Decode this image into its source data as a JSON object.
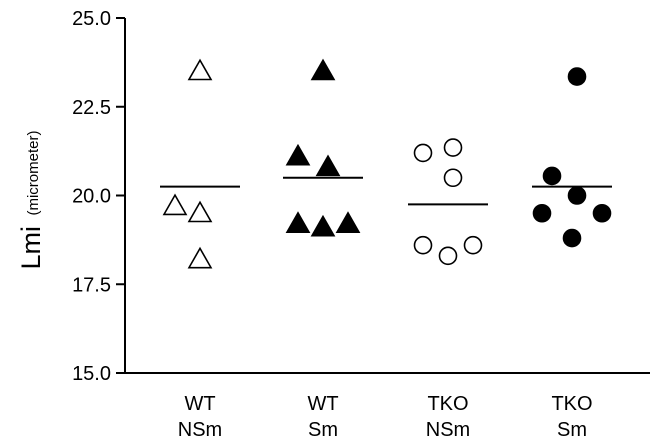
{
  "chart_data": {
    "type": "scatter",
    "ylabel": {
      "main": "Lmi",
      "unit": "(micrometer)"
    },
    "ylim": [
      15.0,
      25.0
    ],
    "y_ticks": [
      "15.0",
      "17.5",
      "20.0",
      "22.5",
      "25.0"
    ],
    "grid": false,
    "legend": "none",
    "categories": [
      {
        "line1": "WT",
        "line2": "NSm"
      },
      {
        "line1": "WT",
        "line2": "Sm"
      },
      {
        "line1": "TKO",
        "line2": "NSm"
      },
      {
        "line1": "TKO",
        "line2": "Sm"
      }
    ],
    "groups": [
      {
        "marker": "triangle-open",
        "mean": 20.25,
        "points": [
          {
            "x_offset": 0.0,
            "y": 23.5
          },
          {
            "x_offset": -0.25,
            "y": 19.7
          },
          {
            "x_offset": 0.0,
            "y": 19.5
          },
          {
            "x_offset": 0.0,
            "y": 18.2
          }
        ]
      },
      {
        "marker": "triangle-filled",
        "mean": 20.5,
        "points": [
          {
            "x_offset": 0.0,
            "y": 23.5
          },
          {
            "x_offset": -0.25,
            "y": 21.1
          },
          {
            "x_offset": 0.05,
            "y": 20.8
          },
          {
            "x_offset": -0.25,
            "y": 19.2
          },
          {
            "x_offset": 0.0,
            "y": 19.1
          },
          {
            "x_offset": 0.25,
            "y": 19.2
          }
        ]
      },
      {
        "marker": "circle-open",
        "mean": 19.75,
        "points": [
          {
            "x_offset": -0.25,
            "y": 21.2
          },
          {
            "x_offset": 0.05,
            "y": 21.35
          },
          {
            "x_offset": 0.05,
            "y": 20.5
          },
          {
            "x_offset": -0.25,
            "y": 18.6
          },
          {
            "x_offset": 0.0,
            "y": 18.3
          },
          {
            "x_offset": 0.25,
            "y": 18.6
          }
        ]
      },
      {
        "marker": "circle-filled",
        "mean": 20.25,
        "points": [
          {
            "x_offset": 0.05,
            "y": 23.35
          },
          {
            "x_offset": -0.2,
            "y": 20.55
          },
          {
            "x_offset": 0.05,
            "y": 20.0
          },
          {
            "x_offset": -0.3,
            "y": 19.5
          },
          {
            "x_offset": 0.3,
            "y": 19.5
          },
          {
            "x_offset": 0.0,
            "y": 18.8
          }
        ]
      }
    ],
    "colors": {
      "marker": "#000000",
      "open_fill": "#ffffff",
      "mean_line": "#000000",
      "axis": "#000000"
    }
  }
}
